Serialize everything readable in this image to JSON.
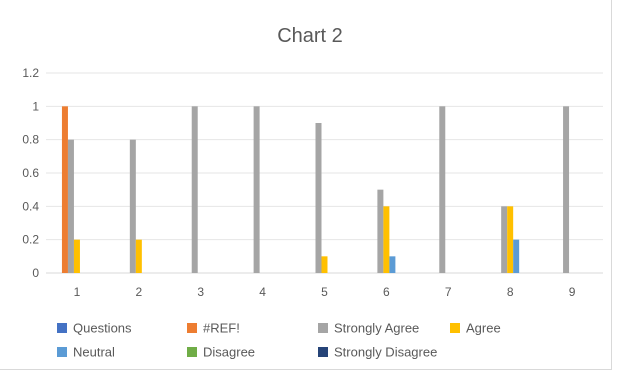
{
  "chart_data": {
    "type": "bar",
    "title": "Chart 2",
    "xlabel": "",
    "ylabel": "",
    "categories": [
      "1",
      "2",
      "3",
      "4",
      "5",
      "6",
      "7",
      "8",
      "9"
    ],
    "ylim": [
      0,
      1.2
    ],
    "yticks": [
      "0",
      "0.2",
      "0.4",
      "0.6",
      "0.8",
      "1",
      "1.2"
    ],
    "grid": true,
    "legend_position": "bottom",
    "series": [
      {
        "name": "Questions",
        "color": "#4472c4",
        "values": [
          0,
          0,
          0,
          0,
          0,
          0,
          0,
          0,
          0
        ]
      },
      {
        "name": "#REF!",
        "color": "#ed7d31",
        "values": [
          1,
          0,
          0,
          0,
          0,
          0,
          0,
          0,
          0
        ]
      },
      {
        "name": "Strongly Agree",
        "color": "#a5a5a5",
        "values": [
          0.8,
          0.8,
          1,
          1,
          0.9,
          0.5,
          1,
          0.4,
          1
        ]
      },
      {
        "name": "Agree",
        "color": "#ffc000",
        "values": [
          0.2,
          0.2,
          0,
          0,
          0.1,
          0.4,
          0,
          0.4,
          0
        ]
      },
      {
        "name": "Neutral",
        "color": "#5b9bd5",
        "values": [
          0,
          0,
          0,
          0,
          0,
          0.1,
          0,
          0.2,
          0
        ]
      },
      {
        "name": "Disagree",
        "color": "#70ad47",
        "values": [
          0,
          0,
          0,
          0,
          0,
          0,
          0,
          0,
          0
        ]
      },
      {
        "name": "Strongly Disagree",
        "color": "#264478",
        "values": [
          0,
          0,
          0,
          0,
          0,
          0,
          0,
          0,
          0
        ]
      }
    ]
  }
}
